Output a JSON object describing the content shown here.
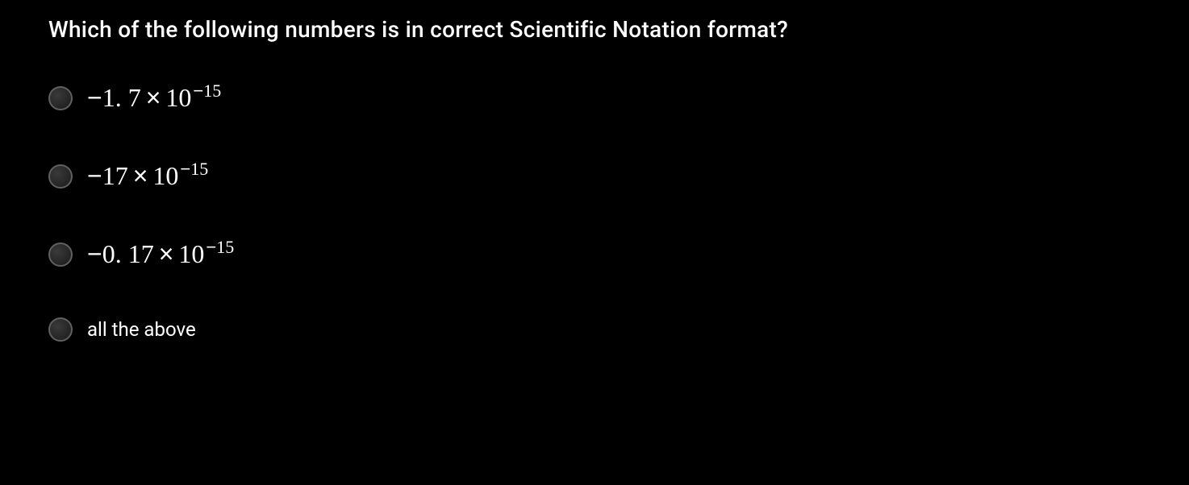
{
  "question": {
    "text": "Which of the following numbers is in correct Scientific Notation format?",
    "font_size": 28,
    "color": "#ffffff"
  },
  "options": [
    {
      "coefficient": "1. 7",
      "coefficient_sign": "−",
      "exponent": "15",
      "exponent_sign": "−",
      "is_math": true
    },
    {
      "coefficient": "17",
      "coefficient_sign": "−",
      "exponent": "15",
      "exponent_sign": "−",
      "is_math": true
    },
    {
      "coefficient": "0. 17",
      "coefficient_sign": "−",
      "exponent": "15",
      "exponent_sign": "−",
      "is_math": true
    },
    {
      "plain_text": "all the above",
      "is_math": false
    }
  ],
  "styling": {
    "background_color": "#000000",
    "text_color": "#ffffff",
    "radio_border_color": "#606060",
    "math_font": "Times New Roman",
    "math_font_size": 32,
    "plain_font_size": 24,
    "exponent_font_size": 22
  }
}
